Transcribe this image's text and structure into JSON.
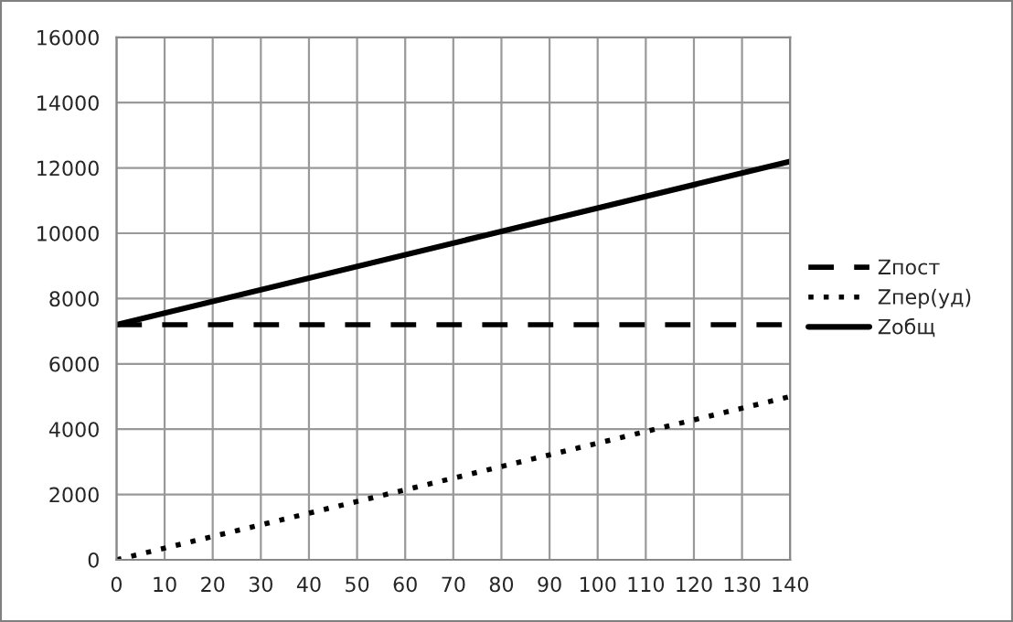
{
  "chart_data": {
    "type": "line",
    "xlim": [
      0,
      140
    ],
    "xticks": [
      0,
      10,
      20,
      30,
      40,
      50,
      60,
      70,
      80,
      90,
      100,
      110,
      120,
      130,
      140
    ],
    "ylim": [
      0,
      16000
    ],
    "yticks": [
      0,
      2000,
      4000,
      6000,
      8000,
      10000,
      12000,
      14000,
      16000
    ],
    "grid": true,
    "legend": "right",
    "marker": "none",
    "x": [
      0,
      140
    ],
    "series": [
      {
        "name": "Zпост",
        "color": "#000000",
        "line_style": "dashed",
        "values": [
          7200,
          7200
        ]
      },
      {
        "name": "Zпер(уд)",
        "color": "#000000",
        "line_style": "dotted",
        "values": [
          0,
          5000
        ]
      },
      {
        "name": "Zобщ",
        "color": "#000000",
        "line_style": "solid",
        "values": [
          7200,
          12200
        ]
      }
    ]
  }
}
